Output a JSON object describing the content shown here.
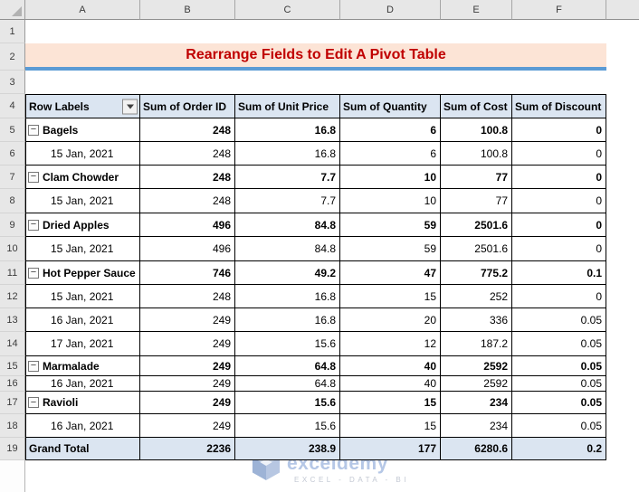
{
  "title": {
    "text": "Rearrange Fields to Edit A Pivot Table"
  },
  "colors": {
    "peach": "#FCE4D6",
    "red": "#C00000",
    "blue": "#5B9BD5",
    "pivotblue": "#DBE5F1"
  },
  "icons": {
    "collapse": "−",
    "filter_dropdown": "▾",
    "select_all_triangle": "◢"
  },
  "pivot": {
    "headers": [
      "Row Labels",
      "Sum of Order ID",
      "Sum of Unit Price",
      "Sum of Quantity",
      "Sum of Cost",
      "Sum of Discount"
    ]
  },
  "sheet": {
    "column_headers": [
      "A",
      "B",
      "C",
      "D",
      "E",
      "F"
    ],
    "rows": [
      {
        "num": "1",
        "kind": "blank"
      },
      {
        "num": "2",
        "kind": "title"
      },
      {
        "num": "3",
        "kind": "blank"
      },
      {
        "num": "4",
        "kind": "pivot_header"
      },
      {
        "num": "5",
        "kind": "category",
        "label": "Bagels",
        "values": [
          "248",
          "16.8",
          "6",
          "100.8",
          "0"
        ]
      },
      {
        "num": "6",
        "kind": "date",
        "label": "15 Jan, 2021",
        "values": [
          "248",
          "16.8",
          "6",
          "100.8",
          "0"
        ]
      },
      {
        "num": "7",
        "kind": "category",
        "label": "Clam Chowder",
        "values": [
          "248",
          "7.7",
          "10",
          "77",
          "0"
        ]
      },
      {
        "num": "8",
        "kind": "date",
        "label": "15 Jan, 2021",
        "values": [
          "248",
          "7.7",
          "10",
          "77",
          "0"
        ]
      },
      {
        "num": "9",
        "kind": "category",
        "label": "Dried Apples",
        "values": [
          "496",
          "84.8",
          "59",
          "2501.6",
          "0"
        ]
      },
      {
        "num": "10",
        "kind": "date",
        "label": "15 Jan, 2021",
        "values": [
          "496",
          "84.8",
          "59",
          "2501.6",
          "0"
        ]
      },
      {
        "num": "11",
        "kind": "category",
        "label": "Hot Pepper Sauce",
        "values": [
          "746",
          "49.2",
          "47",
          "775.2",
          "0.1"
        ]
      },
      {
        "num": "12",
        "kind": "date",
        "label": "15 Jan, 2021",
        "values": [
          "248",
          "16.8",
          "15",
          "252",
          "0"
        ]
      },
      {
        "num": "13",
        "kind": "date",
        "label": "16 Jan, 2021",
        "values": [
          "249",
          "16.8",
          "20",
          "336",
          "0.05"
        ]
      },
      {
        "num": "14",
        "kind": "date",
        "label": "17 Jan, 2021",
        "values": [
          "249",
          "15.6",
          "12",
          "187.2",
          "0.05"
        ]
      },
      {
        "num": "15",
        "kind": "category",
        "label": "Marmalade",
        "values": [
          "249",
          "64.8",
          "40",
          "2592",
          "0.05"
        ]
      },
      {
        "num": "16",
        "kind": "date",
        "label": "16 Jan, 2021",
        "values": [
          "249",
          "64.8",
          "40",
          "2592",
          "0.05"
        ]
      },
      {
        "num": "17",
        "kind": "category",
        "label": "Ravioli",
        "values": [
          "249",
          "15.6",
          "15",
          "234",
          "0.05"
        ]
      },
      {
        "num": "18",
        "kind": "date",
        "label": "16 Jan, 2021",
        "values": [
          "249",
          "15.6",
          "15",
          "234",
          "0.05"
        ]
      },
      {
        "num": "19",
        "kind": "total",
        "label": "Grand Total",
        "values": [
          "2236",
          "238.9",
          "177",
          "6280.6",
          "0.2"
        ]
      }
    ]
  },
  "watermark": {
    "brand": "exceldemy",
    "tagline": "EXCEL - DATA - BI"
  }
}
